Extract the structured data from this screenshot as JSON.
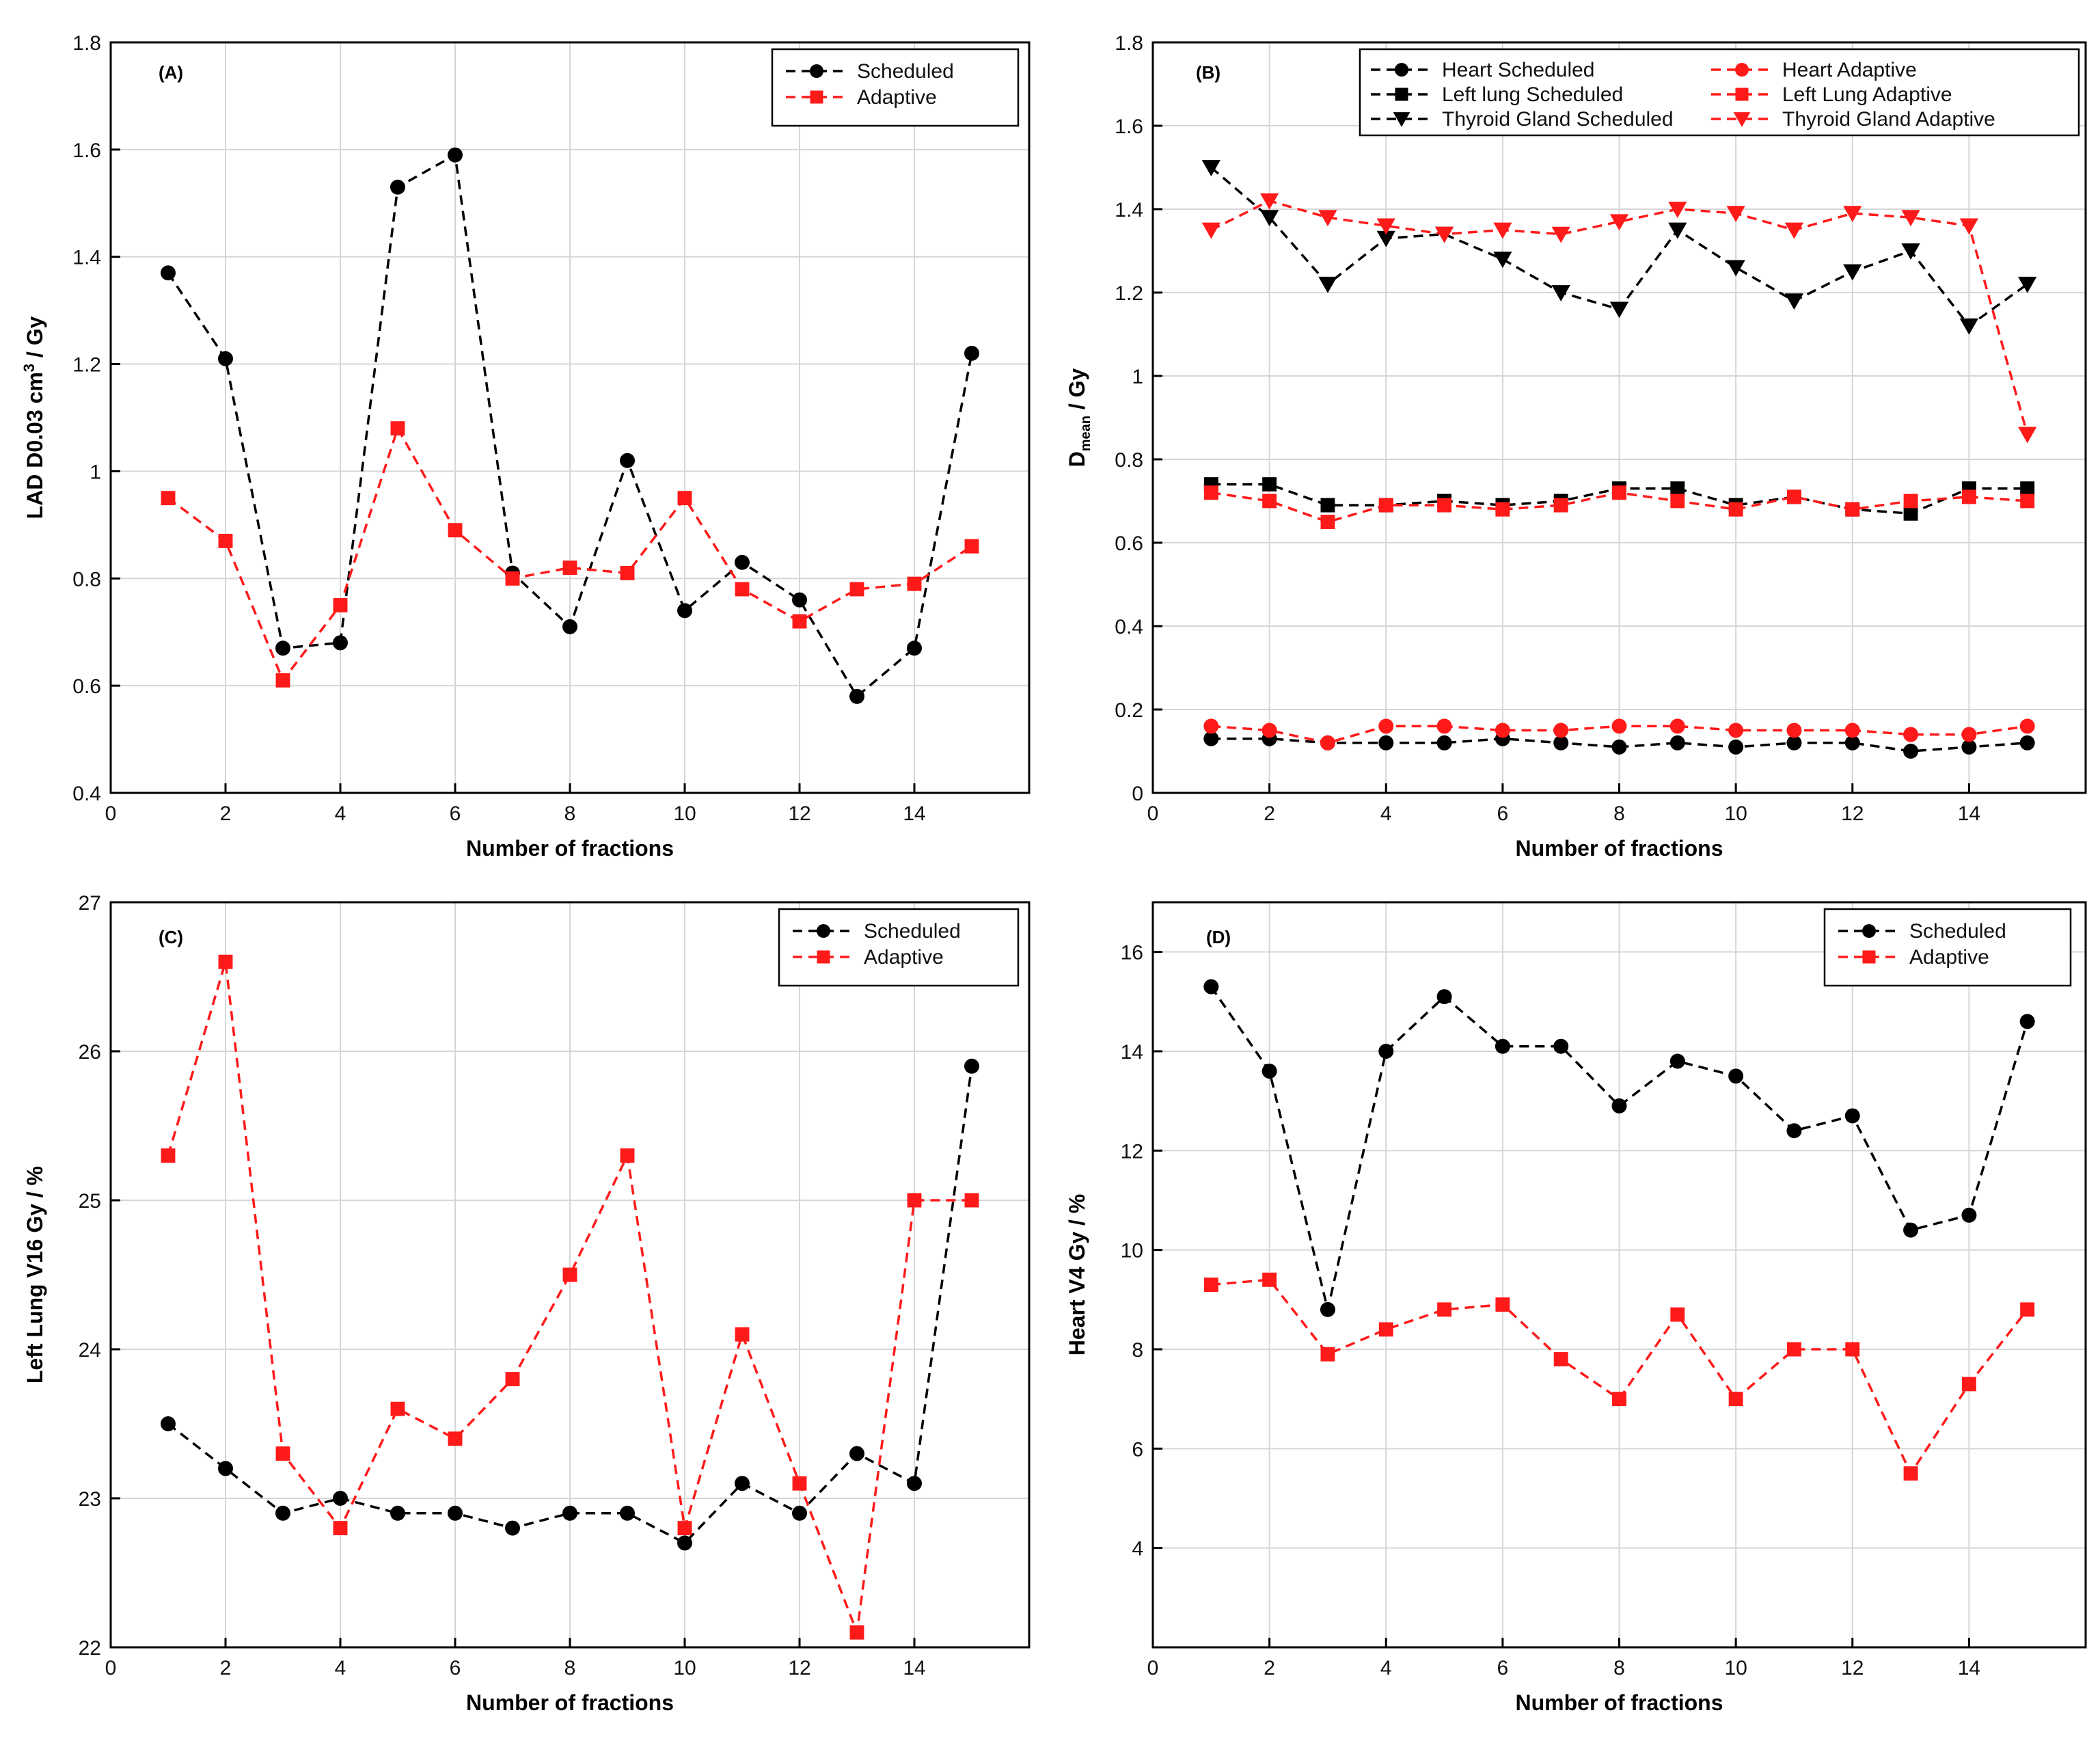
{
  "chart_data": [
    {
      "panel_label": "(A)",
      "type": "line",
      "x": [
        1,
        2,
        3,
        4,
        5,
        6,
        7,
        8,
        9,
        10,
        11,
        12,
        13,
        14,
        15
      ],
      "xlabel": "Number of fractions",
      "ylabel_parts": {
        "pre": "LAD D0.03 cm",
        "sup": "3",
        "post": " / Gy"
      },
      "xlim": [
        0,
        16
      ],
      "ylim": [
        0.4,
        1.8
      ],
      "xticks": [
        0,
        2,
        4,
        6,
        8,
        10,
        12,
        14
      ],
      "yticks": [
        0.4,
        0.6,
        0.8,
        1,
        1.2,
        1.4,
        1.6,
        1.8
      ],
      "legend_position": "top-right",
      "series": [
        {
          "name": "Scheduled",
          "color": "#000000",
          "marker": "circle",
          "values": [
            1.37,
            1.21,
            0.67,
            0.68,
            1.53,
            1.59,
            0.81,
            0.71,
            1.02,
            0.74,
            0.83,
            0.76,
            0.58,
            0.67,
            1.22
          ]
        },
        {
          "name": "Adaptive",
          "color": "#ff1a1a",
          "marker": "square",
          "values": [
            0.95,
            0.87,
            0.61,
            0.75,
            1.08,
            0.89,
            0.8,
            0.82,
            0.81,
            0.95,
            0.78,
            0.72,
            0.78,
            0.79,
            0.86
          ]
        }
      ]
    },
    {
      "panel_label": "(B)",
      "type": "line",
      "x": [
        1,
        2,
        3,
        4,
        5,
        6,
        7,
        8,
        9,
        10,
        11,
        12,
        13,
        14,
        15
      ],
      "xlabel": "Number of fractions",
      "ylabel_parts": {
        "pre": "D",
        "sub": "mean",
        "post": " / Gy"
      },
      "xlim": [
        0,
        16
      ],
      "ylim": [
        0,
        1.8
      ],
      "xticks": [
        0,
        2,
        4,
        6,
        8,
        10,
        12,
        14
      ],
      "yticks": [
        0,
        0.2,
        0.4,
        0.6,
        0.8,
        1,
        1.2,
        1.4,
        1.6,
        1.8
      ],
      "legend_position": "top-right",
      "series": [
        {
          "name": "Heart Scheduled",
          "color": "#000000",
          "marker": "circle",
          "values": [
            0.13,
            0.13,
            0.12,
            0.12,
            0.12,
            0.13,
            0.12,
            0.11,
            0.12,
            0.11,
            0.12,
            0.12,
            0.1,
            0.11,
            0.12
          ]
        },
        {
          "name": "Heart Adaptive",
          "color": "#ff1a1a",
          "marker": "circle",
          "values": [
            0.16,
            0.15,
            0.12,
            0.16,
            0.16,
            0.15,
            0.15,
            0.16,
            0.16,
            0.15,
            0.15,
            0.15,
            0.14,
            0.14,
            0.16
          ]
        },
        {
          "name": "Left lung Scheduled",
          "color": "#000000",
          "marker": "square",
          "values": [
            0.74,
            0.74,
            0.69,
            0.69,
            0.7,
            0.69,
            0.7,
            0.73,
            0.73,
            0.69,
            0.71,
            0.68,
            0.67,
            0.73,
            0.73
          ]
        },
        {
          "name": "Left Lung Adaptive",
          "color": "#ff1a1a",
          "marker": "square",
          "values": [
            0.72,
            0.7,
            0.65,
            0.69,
            0.69,
            0.68,
            0.69,
            0.72,
            0.7,
            0.68,
            0.71,
            0.68,
            0.7,
            0.71,
            0.7
          ]
        },
        {
          "name": "Thyroid Gland Scheduled",
          "color": "#000000",
          "marker": "triangle-down",
          "values": [
            1.5,
            1.38,
            1.22,
            1.33,
            1.34,
            1.28,
            1.2,
            1.16,
            1.35,
            1.26,
            1.18,
            1.25,
            1.3,
            1.12,
            1.22
          ]
        },
        {
          "name": "Thyroid Gland Adaptive",
          "color": "#ff1a1a",
          "marker": "triangle-down",
          "values": [
            1.35,
            1.42,
            1.38,
            1.36,
            1.34,
            1.35,
            1.34,
            1.37,
            1.4,
            1.39,
            1.35,
            1.39,
            1.38,
            1.36,
            0.86
          ]
        }
      ]
    },
    {
      "panel_label": "(C)",
      "type": "line",
      "x": [
        1,
        2,
        3,
        4,
        5,
        6,
        7,
        8,
        9,
        10,
        11,
        12,
        13,
        14,
        15
      ],
      "xlabel": "Number of fractions",
      "ylabel_parts": {
        "pre": "Left Lung V16 Gy / %"
      },
      "xlim": [
        0,
        16
      ],
      "ylim": [
        22,
        27
      ],
      "xticks": [
        0,
        2,
        4,
        6,
        8,
        10,
        12,
        14
      ],
      "yticks": [
        22,
        23,
        24,
        25,
        26,
        27
      ],
      "legend_position": "top-right",
      "series": [
        {
          "name": "Scheduled",
          "color": "#000000",
          "marker": "circle",
          "values": [
            23.5,
            23.2,
            22.9,
            23.0,
            22.9,
            22.9,
            22.8,
            22.9,
            22.9,
            22.7,
            23.1,
            22.9,
            23.3,
            23.1,
            25.9
          ]
        },
        {
          "name": "Adaptive",
          "color": "#ff1a1a",
          "marker": "square",
          "values": [
            25.3,
            26.6,
            23.3,
            22.8,
            23.6,
            23.4,
            23.8,
            24.5,
            25.3,
            22.8,
            24.1,
            23.1,
            22.1,
            25.0,
            25.0
          ]
        }
      ]
    },
    {
      "panel_label": "(D)",
      "type": "line",
      "x": [
        1,
        2,
        3,
        4,
        5,
        6,
        7,
        8,
        9,
        10,
        11,
        12,
        13,
        14,
        15
      ],
      "xlabel": "Number of fractions",
      "ylabel_parts": {
        "pre": "Heart V4 Gy / %"
      },
      "xlim": [
        0,
        16
      ],
      "ylim": [
        2,
        17
      ],
      "xticks": [
        0,
        2,
        4,
        6,
        8,
        10,
        12,
        14
      ],
      "yticks": [
        4,
        6,
        8,
        10,
        12,
        14,
        16
      ],
      "legend_position": "top-right",
      "series": [
        {
          "name": "Scheduled",
          "color": "#000000",
          "marker": "circle",
          "values": [
            15.3,
            13.6,
            8.8,
            14.0,
            15.1,
            14.1,
            14.1,
            12.9,
            13.8,
            13.5,
            12.4,
            12.7,
            10.4,
            10.7,
            14.6
          ]
        },
        {
          "name": "Adaptive",
          "color": "#ff1a1a",
          "marker": "square",
          "values": [
            9.3,
            9.4,
            7.9,
            8.4,
            8.8,
            8.9,
            7.8,
            7.0,
            8.7,
            7.0,
            8.0,
            8.0,
            5.5,
            7.3,
            8.8
          ]
        }
      ]
    }
  ]
}
